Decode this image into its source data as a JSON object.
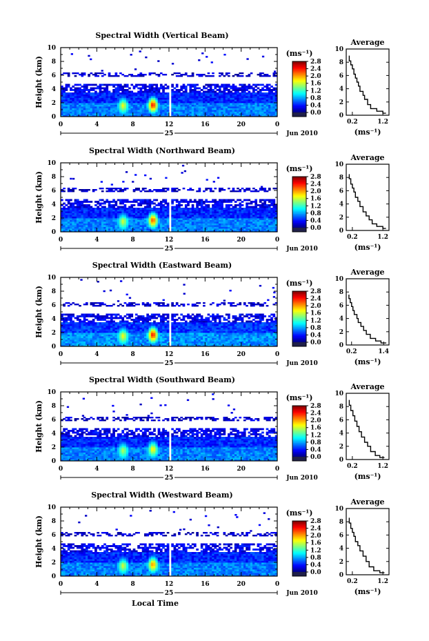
{
  "figure": {
    "xlabel": "Local Time",
    "date_label": "Jun 2010",
    "day_label": "25",
    "colorbar_unit": "(ms⁻¹)",
    "avg_title": "Average",
    "avg_xlabel": "(ms⁻¹)",
    "ylabel": "Height (km)"
  },
  "chart_data": [
    {
      "type": "heatmap",
      "title": "Spectral Width (Vertical Beam)",
      "xlabel": "",
      "ylabel": "Height (km)",
      "x_ticks": [
        "0",
        "4",
        "8",
        "12",
        "16",
        "20",
        "0"
      ],
      "xlim": [
        0,
        24
      ],
      "ylim": [
        0,
        10
      ],
      "y_ticks": [
        "0",
        "2",
        "4",
        "6",
        "8",
        "10"
      ],
      "colorbar": {
        "label": "(ms⁻¹)",
        "ticks": [
          "0.0",
          "0.4",
          "0.8",
          "1.2",
          "1.6",
          "2.0",
          "2.4",
          "2.8"
        ],
        "range": [
          0,
          2.8
        ]
      },
      "layers": [
        {
          "z0": 0,
          "z1": 2,
          "v": 0.7
        },
        {
          "z0": 2,
          "z1": 3.5,
          "v": 0.45
        },
        {
          "z0": 3.5,
          "z1": 4.6,
          "v": 0.3
        },
        {
          "z0": 5.8,
          "z1": 6.3,
          "v": 0.2
        }
      ],
      "hotspots": [
        {
          "t": 10.1,
          "z": 1.6,
          "v": 2.6
        },
        {
          "t": 6.8,
          "z": 1.5,
          "v": 1.8
        }
      ]
    },
    {
      "type": "line",
      "title": "Average",
      "xlabel": "(ms⁻¹)",
      "ylabel": "",
      "x_ticks": [
        "0.2",
        "1.2"
      ],
      "xlim": [
        0,
        1.4
      ],
      "ylim": [
        0,
        10
      ],
      "y_ticks": [
        "0",
        "2",
        "4",
        "6",
        "8",
        "10"
      ],
      "x": [
        0.1,
        0.15,
        0.2,
        0.25,
        0.3,
        0.35,
        0.4,
        0.45,
        0.55,
        0.6,
        0.7,
        0.8,
        1.0,
        1.2,
        1.3
      ],
      "y": [
        9.0,
        8.2,
        7.6,
        7.0,
        6.2,
        5.6,
        5.0,
        4.4,
        3.6,
        3.0,
        2.4,
        1.6,
        1.0,
        0.6,
        0.3
      ]
    },
    {
      "type": "heatmap",
      "title": "Spectral Width (Northward Beam)",
      "xlabel": "",
      "ylabel": "Height (km)",
      "x_ticks": [
        "0",
        "4",
        "8",
        "12",
        "16",
        "20",
        "0"
      ],
      "xlim": [
        0,
        24
      ],
      "ylim": [
        0,
        10
      ],
      "y_ticks": [
        "0",
        "2",
        "4",
        "6",
        "8",
        "10"
      ],
      "colorbar": {
        "label": "(ms⁻¹)",
        "ticks": [
          "0.0",
          "0.4",
          "0.8",
          "1.2",
          "1.6",
          "2.0",
          "2.4",
          "2.8"
        ],
        "range": [
          0,
          2.8
        ]
      },
      "layers": [
        {
          "z0": 0,
          "z1": 2,
          "v": 0.7
        },
        {
          "z0": 2,
          "z1": 3.5,
          "v": 0.45
        },
        {
          "z0": 3.5,
          "z1": 4.6,
          "v": 0.3
        },
        {
          "z0": 5.8,
          "z1": 6.3,
          "v": 0.2
        }
      ],
      "hotspots": [
        {
          "t": 10.1,
          "z": 1.6,
          "v": 2.4
        },
        {
          "t": 6.8,
          "z": 1.4,
          "v": 1.7
        }
      ]
    },
    {
      "type": "line",
      "title": "Average",
      "xlabel": "(ms⁻¹)",
      "ylabel": "",
      "x_ticks": [
        "0.2",
        "1.2"
      ],
      "xlim": [
        0,
        1.4
      ],
      "ylim": [
        0,
        10
      ],
      "y_ticks": [
        "0",
        "2",
        "4",
        "6",
        "8",
        "10"
      ],
      "x": [
        0.1,
        0.15,
        0.2,
        0.25,
        0.3,
        0.38,
        0.45,
        0.55,
        0.65,
        0.75,
        0.85,
        1.0,
        1.2,
        1.3
      ],
      "y": [
        8.5,
        7.8,
        7.0,
        6.4,
        5.8,
        5.0,
        4.4,
        3.6,
        2.8,
        2.2,
        1.6,
        1.0,
        0.6,
        0.3
      ]
    },
    {
      "type": "heatmap",
      "title": "Spectral Width (Eastward Beam)",
      "xlabel": "",
      "ylabel": "Height (km)",
      "x_ticks": [
        "0",
        "4",
        "8",
        "12",
        "16",
        "20",
        "0"
      ],
      "xlim": [
        0,
        24
      ],
      "ylim": [
        0,
        10
      ],
      "y_ticks": [
        "0",
        "2",
        "4",
        "6",
        "8",
        "10"
      ],
      "colorbar": {
        "label": "(ms⁻¹)",
        "ticks": [
          "0.0",
          "0.4",
          "0.8",
          "1.2",
          "1.6",
          "2.0",
          "2.4",
          "2.8"
        ],
        "range": [
          0,
          2.8
        ]
      },
      "layers": [
        {
          "z0": 0,
          "z1": 2,
          "v": 0.75
        },
        {
          "z0": 2,
          "z1": 3.5,
          "v": 0.5
        },
        {
          "z0": 3.5,
          "z1": 4.6,
          "v": 0.3
        },
        {
          "z0": 5.8,
          "z1": 6.3,
          "v": 0.2
        }
      ],
      "hotspots": [
        {
          "t": 10.1,
          "z": 1.6,
          "v": 2.6
        },
        {
          "t": 6.8,
          "z": 1.4,
          "v": 1.8
        }
      ]
    },
    {
      "type": "line",
      "title": "Average",
      "xlabel": "(ms⁻¹)",
      "ylabel": "",
      "x_ticks": [
        "0.2",
        "1.4"
      ],
      "xlim": [
        0,
        1.6
      ],
      "ylim": [
        0,
        10
      ],
      "y_ticks": [
        "0",
        "2",
        "4",
        "6",
        "8",
        "10"
      ],
      "x": [
        0.1,
        0.15,
        0.2,
        0.25,
        0.3,
        0.4,
        0.45,
        0.55,
        0.65,
        0.75,
        0.9,
        1.1,
        1.3,
        1.5
      ],
      "y": [
        7.6,
        7.0,
        6.4,
        5.8,
        5.2,
        4.6,
        4.0,
        3.4,
        2.8,
        2.2,
        1.6,
        1.0,
        0.6,
        0.3
      ]
    },
    {
      "type": "heatmap",
      "title": "Spectral Width (Southward Beam)",
      "xlabel": "",
      "ylabel": "Height (km)",
      "x_ticks": [
        "0",
        "4",
        "8",
        "12",
        "16",
        "20",
        "0"
      ],
      "xlim": [
        0,
        24
      ],
      "ylim": [
        0,
        10
      ],
      "y_ticks": [
        "0",
        "2",
        "4",
        "6",
        "8",
        "10"
      ],
      "colorbar": {
        "label": "(ms⁻¹)",
        "ticks": [
          "0.0",
          "0.4",
          "0.8",
          "1.2",
          "1.6",
          "2.0",
          "2.4",
          "2.8"
        ],
        "range": [
          0,
          2.8
        ]
      },
      "layers": [
        {
          "z0": 0,
          "z1": 2,
          "v": 0.7
        },
        {
          "z0": 2,
          "z1": 3.5,
          "v": 0.45
        },
        {
          "z0": 3.5,
          "z1": 4.6,
          "v": 0.3
        },
        {
          "z0": 5.8,
          "z1": 6.3,
          "v": 0.2
        }
      ],
      "hotspots": [
        {
          "t": 10.1,
          "z": 1.6,
          "v": 1.9
        },
        {
          "t": 6.8,
          "z": 1.4,
          "v": 1.6
        }
      ]
    },
    {
      "type": "line",
      "title": "Average",
      "xlabel": "(ms⁻¹)",
      "ylabel": "",
      "x_ticks": [
        "0.2",
        "1.2"
      ],
      "xlim": [
        0,
        1.4
      ],
      "ylim": [
        0,
        10
      ],
      "y_ticks": [
        "0",
        "2",
        "4",
        "6",
        "8",
        "10"
      ],
      "x": [
        0.1,
        0.15,
        0.22,
        0.28,
        0.35,
        0.42,
        0.5,
        0.6,
        0.7,
        0.8,
        0.95,
        1.1,
        1.25
      ],
      "y": [
        9.0,
        8.2,
        7.4,
        6.6,
        5.8,
        5.0,
        4.2,
        3.4,
        2.6,
        2.0,
        1.2,
        0.6,
        0.3
      ]
    },
    {
      "type": "heatmap",
      "title": "Spectral Width (Westward Beam)",
      "xlabel": "Local Time",
      "ylabel": "Height (km)",
      "x_ticks": [
        "0",
        "4",
        "8",
        "12",
        "16",
        "20",
        "0"
      ],
      "xlim": [
        0,
        24
      ],
      "ylim": [
        0,
        10
      ],
      "y_ticks": [
        "0",
        "2",
        "4",
        "6",
        "8",
        "10"
      ],
      "colorbar": {
        "label": "(ms⁻¹)",
        "ticks": [
          "0.0",
          "0.4",
          "0.8",
          "1.2",
          "1.6",
          "2.0",
          "2.4",
          "2.8"
        ],
        "range": [
          0,
          2.8
        ]
      },
      "layers": [
        {
          "z0": 0,
          "z1": 2,
          "v": 0.7
        },
        {
          "z0": 2,
          "z1": 3.5,
          "v": 0.45
        },
        {
          "z0": 3.5,
          "z1": 4.6,
          "v": 0.3
        },
        {
          "z0": 5.8,
          "z1": 6.3,
          "v": 0.2
        }
      ],
      "hotspots": [
        {
          "t": 10.1,
          "z": 1.6,
          "v": 2.2
        },
        {
          "t": 6.8,
          "z": 1.4,
          "v": 1.7
        }
      ]
    },
    {
      "type": "line",
      "title": "Average",
      "xlabel": "(ms⁻¹)",
      "ylabel": "",
      "x_ticks": [
        "0.2",
        "1.2"
      ],
      "xlim": [
        0,
        1.4
      ],
      "ylim": [
        0,
        10
      ],
      "y_ticks": [
        "0",
        "2",
        "4",
        "6",
        "8",
        "10"
      ],
      "x": [
        0.1,
        0.15,
        0.2,
        0.25,
        0.3,
        0.38,
        0.45,
        0.55,
        0.65,
        0.75,
        0.9,
        1.1,
        1.25
      ],
      "y": [
        8.6,
        7.8,
        7.0,
        6.4,
        5.8,
        5.0,
        4.4,
        3.6,
        2.8,
        2.0,
        1.2,
        0.6,
        0.3
      ]
    }
  ]
}
